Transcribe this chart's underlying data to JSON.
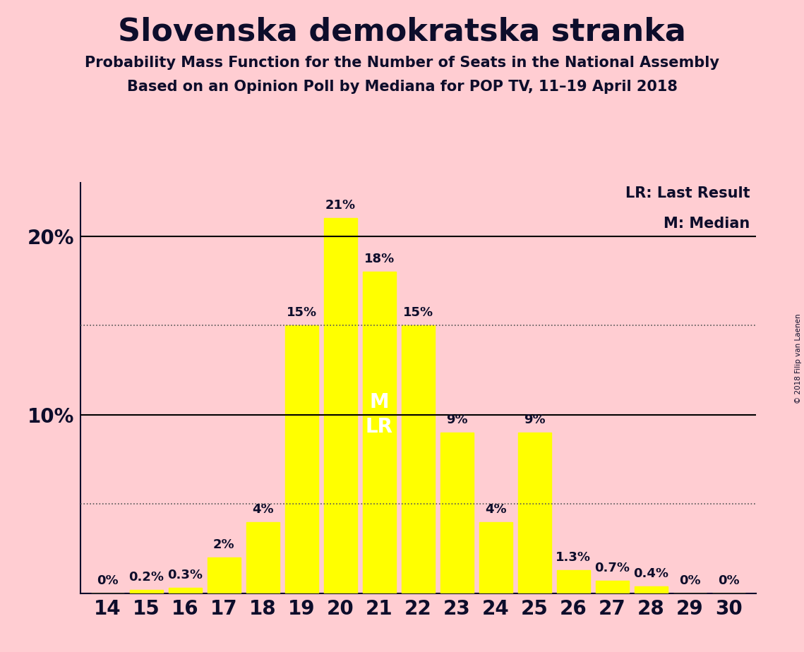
{
  "title": "Slovenska demokratska stranka",
  "subtitle1": "Probability Mass Function for the Number of Seats in the National Assembly",
  "subtitle2": "Based on an Opinion Poll by Mediana for POP TV, 11–19 April 2018",
  "copyright": "© 2018 Filip van Laenen",
  "legend_lr": "LR: Last Result",
  "legend_m": "M: Median",
  "background_color": "#FFCDD2",
  "bar_color": "#FFFF00",
  "text_color": "#0d0d2b",
  "seats": [
    14,
    15,
    16,
    17,
    18,
    19,
    20,
    21,
    22,
    23,
    24,
    25,
    26,
    27,
    28,
    29,
    30
  ],
  "probabilities": [
    0.0,
    0.2,
    0.3,
    2.0,
    4.0,
    15.0,
    21.0,
    18.0,
    15.0,
    9.0,
    4.0,
    9.0,
    1.3,
    0.7,
    0.4,
    0.0,
    0.0
  ],
  "bar_labels": [
    "0%",
    "0.2%",
    "0.3%",
    "2%",
    "4%",
    "15%",
    "21%",
    "18%",
    "15%",
    "9%",
    "4%",
    "9%",
    "1.3%",
    "0.7%",
    "0.4%",
    "0%",
    "0%"
  ],
  "median_seat": 21,
  "lr_seat": 21,
  "ylim": [
    0,
    23
  ],
  "yticks_labeled": [
    10,
    20
  ],
  "ytick_labels": [
    "10%",
    "20%"
  ],
  "hlines_solid": [
    10,
    20
  ],
  "hlines_dotted": [
    5,
    15
  ],
  "solid_line_color": "#000000",
  "dotted_line_color": "#555555"
}
